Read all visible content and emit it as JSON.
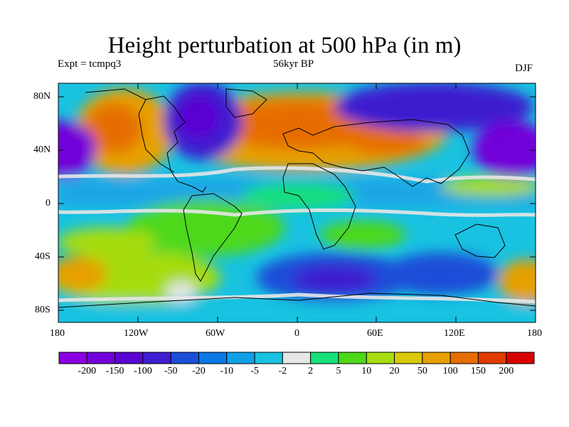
{
  "title": "Height perturbation at 500 hPa (in m)",
  "experiment_label": "Expt = tcmpq3",
  "period_label": "56kyr BP",
  "season_label": "DJF",
  "lat_ticks": [
    "80N",
    "40N",
    "0",
    "40S",
    "80S"
  ],
  "lon_ticks": [
    "180",
    "120W",
    "60W",
    "0",
    "60E",
    "120E",
    "180"
  ],
  "colorbar": {
    "labels": [
      "-200",
      "-150",
      "-100",
      "-50",
      "-20",
      "-10",
      "-5",
      "-2",
      "2",
      "5",
      "10",
      "20",
      "50",
      "100",
      "150",
      "200"
    ],
    "colors": [
      "#8a00e0",
      "#7200d8",
      "#5a06d2",
      "#3e1ed0",
      "#1c4ed8",
      "#0a78e6",
      "#10a0e8",
      "#18c2e0",
      "#e6e6e6",
      "#18e07a",
      "#4ed81a",
      "#a6dc10",
      "#d8c808",
      "#e6a000",
      "#e66e00",
      "#e03c00",
      "#d80000"
    ]
  },
  "map": {
    "projection": "cylindrical equidistant",
    "lon_range": [
      -180,
      180
    ],
    "lat_range": [
      -90,
      90
    ],
    "field": "500 hPa geopotential height perturbation (m)",
    "features": [
      {
        "name": "high-north-atlantic-eurasia",
        "lon": [
          -60,
          90
        ],
        "lat": [
          20,
          75
        ],
        "value": 100
      },
      {
        "name": "high-north-pacific-west-america",
        "lon": [
          -170,
          -100
        ],
        "lat": [
          25,
          70
        ],
        "value": 100
      },
      {
        "name": "low-north-america-greenland",
        "lon": [
          -120,
          -45
        ],
        "lat": [
          35,
          85
        ],
        "value": -100
      },
      {
        "name": "low-siberia-north-pacific",
        "lon": [
          70,
          180
        ],
        "lat": [
          30,
          85
        ],
        "value": -150
      },
      {
        "name": "low-southern-ocean",
        "lon": [
          0,
          180
        ],
        "lat": [
          -70,
          -35
        ],
        "value": -50
      },
      {
        "name": "high-south-pacific",
        "lon": [
          -180,
          -50
        ],
        "lat": [
          -60,
          -20
        ],
        "value": 20
      }
    ]
  }
}
